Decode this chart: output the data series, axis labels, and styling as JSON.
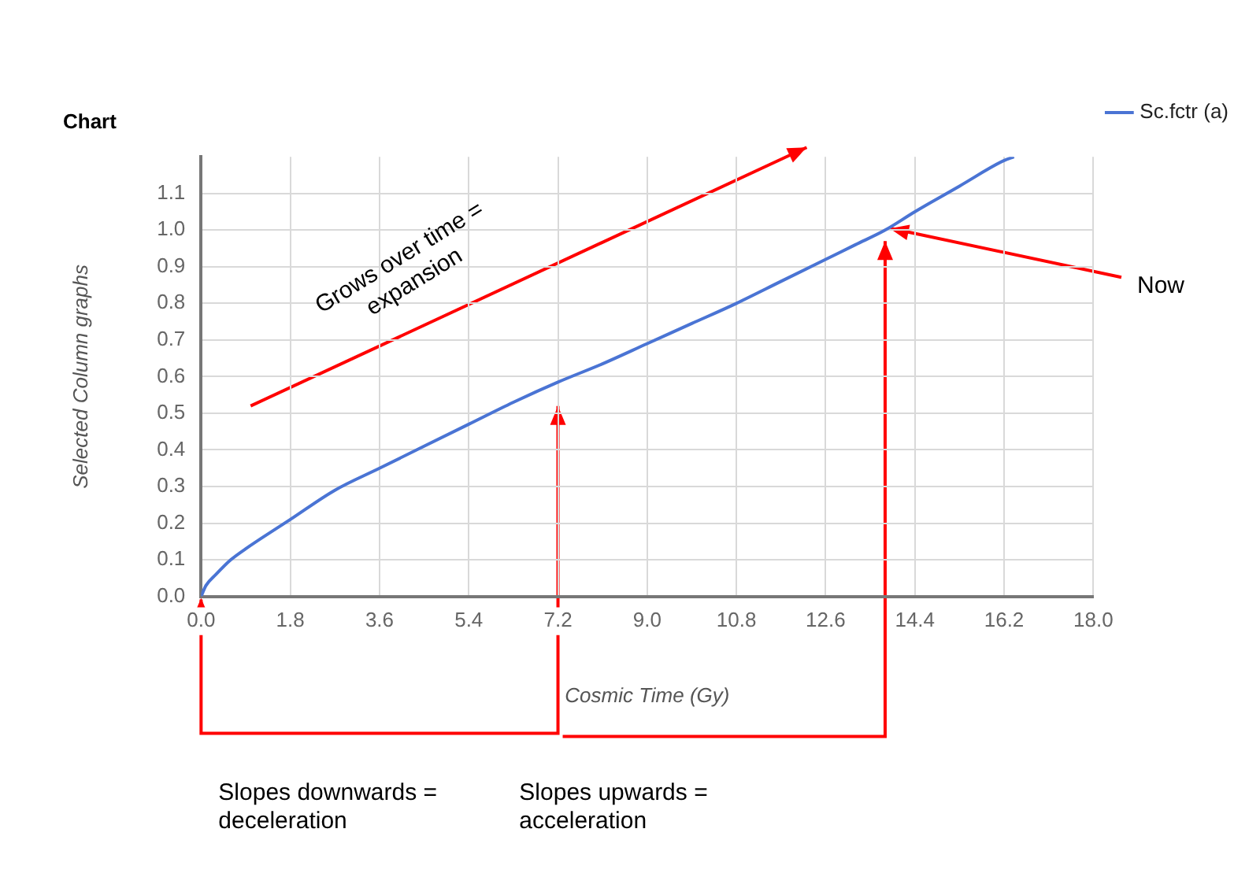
{
  "chart_data": {
    "type": "line",
    "title": "Chart",
    "xlabel": "Cosmic Time (Gy)",
    "ylabel": "Selected Column graphs",
    "series": [
      {
        "name": "Sc.fctr (a)",
        "color": "#4a74d4",
        "x": [
          0,
          0.1,
          0.3,
          0.6,
          0.9,
          1.8,
          2.7,
          3.6,
          4.5,
          5.4,
          6.3,
          7.2,
          8.1,
          9.0,
          9.9,
          10.8,
          11.7,
          12.6,
          13.2,
          13.8,
          14.4,
          15.3,
          16.2,
          16.4
        ],
        "values": [
          0,
          0.03,
          0.06,
          0.1,
          0.13,
          0.21,
          0.29,
          0.35,
          0.41,
          0.47,
          0.53,
          0.585,
          0.635,
          0.69,
          0.745,
          0.8,
          0.86,
          0.92,
          0.96,
          1.0,
          1.05,
          1.12,
          1.19,
          1.2
        ]
      }
    ],
    "xlim": [
      0,
      18
    ],
    "xticks": [
      {
        "value": 0,
        "label": "0.0"
      },
      1.8,
      3.6,
      5.4,
      7.2,
      {
        "value": 9,
        "label": "9.0"
      },
      10.8,
      12.6,
      14.4,
      16.2,
      {
        "value": 18,
        "label": "18.0"
      }
    ],
    "ylim": [
      0,
      1.2
    ],
    "yticks": [
      {
        "value": 0,
        "label": "0.0"
      },
      0.1,
      0.2,
      0.3,
      0.4,
      0.5,
      0.6,
      0.7,
      0.8,
      0.9,
      {
        "value": 1,
        "label": "1.0"
      },
      1.1
    ],
    "grid": true,
    "legend": "top right",
    "marker": "none",
    "line_style": "solid",
    "annotations": [
      "Grows over time = expansion",
      {
        "text": "Now",
        "x": 13.8,
        "y": 1.0
      },
      "Slopes downwards = deceleration",
      "Slopes upwards = acceleration"
    ]
  }
}
